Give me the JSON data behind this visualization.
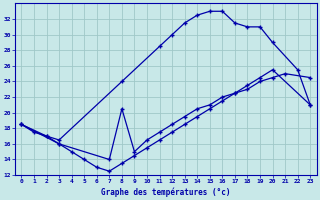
{
  "line1_x": [
    0,
    1,
    2,
    3,
    8,
    11,
    12,
    13,
    14,
    15,
    16,
    17,
    18,
    19,
    20,
    22,
    23
  ],
  "line1_y": [
    18.5,
    17.5,
    17.0,
    16.5,
    24.0,
    28.5,
    30.0,
    31.5,
    32.5,
    33.0,
    33.0,
    31.5,
    31.0,
    31.0,
    29.0,
    25.5,
    21.0
  ],
  "line2_x": [
    0,
    2,
    3,
    7,
    8,
    9,
    10,
    11,
    12,
    13,
    14,
    15,
    16,
    17,
    18,
    19,
    20,
    21,
    23
  ],
  "line2_y": [
    18.5,
    17.0,
    16.0,
    14.0,
    20.5,
    15.0,
    16.5,
    17.5,
    18.5,
    19.5,
    20.5,
    21.0,
    22.0,
    22.5,
    23.0,
    24.0,
    24.5,
    25.0,
    24.5
  ],
  "line3_x": [
    0,
    3,
    4,
    5,
    6,
    7,
    8,
    9,
    10,
    11,
    12,
    13,
    14,
    15,
    16,
    17,
    18,
    19,
    20,
    23
  ],
  "line3_y": [
    18.5,
    16.0,
    15.0,
    14.0,
    13.0,
    12.5,
    13.5,
    14.5,
    15.5,
    16.5,
    17.5,
    18.5,
    19.5,
    20.5,
    21.5,
    22.5,
    23.5,
    24.5,
    25.5,
    21.0
  ],
  "bg_color": "#c8e8e8",
  "grid_color": "#a0c8c8",
  "line_color": "#0000aa",
  "xlabel": "Graphe des températures (°c)",
  "ylim": [
    12,
    34
  ],
  "xlim": [
    -0.5,
    23.5
  ],
  "yticks": [
    12,
    14,
    16,
    18,
    20,
    22,
    24,
    26,
    28,
    30,
    32
  ],
  "xticks": [
    0,
    1,
    2,
    3,
    4,
    5,
    6,
    7,
    8,
    9,
    10,
    11,
    12,
    13,
    14,
    15,
    16,
    17,
    18,
    19,
    20,
    21,
    22,
    23
  ]
}
